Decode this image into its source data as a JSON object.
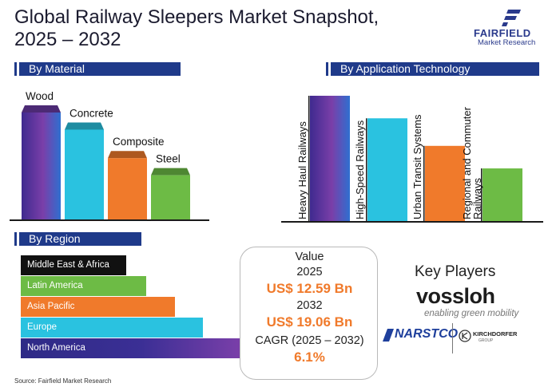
{
  "title_line1": "Global Railway Sleepers Market Snapshot,",
  "title_line2": "2025 – 2032",
  "logo": {
    "name": "FAIRFIELD",
    "sub": "Market Research"
  },
  "sections": {
    "material": "By Material",
    "application": "By Application Technology",
    "region": "By Region"
  },
  "colors": {
    "header_bg": "#1f3a8a",
    "purple": "#6a3ba3",
    "cyan": "#2ac2e0",
    "orange": "#f07a2b",
    "green": "#6dbb45",
    "black": "#111111",
    "accent_money": "#f07a2b"
  },
  "chart_data": [
    {
      "type": "bar",
      "title": "By Material",
      "categories": [
        "Wood",
        "Concrete",
        "Composite",
        "Steel"
      ],
      "values": [
        100,
        85,
        60,
        45
      ],
      "colors": [
        "#6a3ba3",
        "#2ac2e0",
        "#f07a2b",
        "#6dbb45"
      ]
    },
    {
      "type": "bar",
      "title": "By Application Technology",
      "categories": [
        "Heavy Haul Railways",
        "High-Speed Railways",
        "Urban Transit Systems",
        "Regional and Commuter Railways"
      ],
      "values": [
        100,
        82,
        60,
        42
      ],
      "colors": [
        "#6a3ba3",
        "#2ac2e0",
        "#f07a2b",
        "#6dbb45"
      ]
    },
    {
      "type": "bar",
      "orientation": "horizontal",
      "title": "By Region",
      "categories": [
        "Middle East & Africa",
        "Latin America",
        "Asia Pacific",
        "Europe",
        "North America"
      ],
      "values": [
        48,
        57,
        70,
        83,
        100
      ],
      "colors": [
        "#111111",
        "#6dbb45",
        "#f07a2b",
        "#2ac2e0",
        "#6a3ba3"
      ]
    }
  ],
  "value_box": {
    "label": "Value",
    "year1": "2025",
    "value1": "US$ 12.59 Bn",
    "year2": "2032",
    "value2": "US$ 19.06 Bn",
    "cagr_label": "CAGR (2025 – 2032)",
    "cagr_value": "6.1%"
  },
  "key_players": {
    "title": "Key Players",
    "players": [
      {
        "name": "vossloh",
        "tagline": "enabling green mobility"
      },
      {
        "name": "NARSTCO"
      },
      {
        "name": "KIRCHDORFER",
        "sub": "GROUP"
      }
    ]
  },
  "source": "Source: Fairfield Market Research"
}
